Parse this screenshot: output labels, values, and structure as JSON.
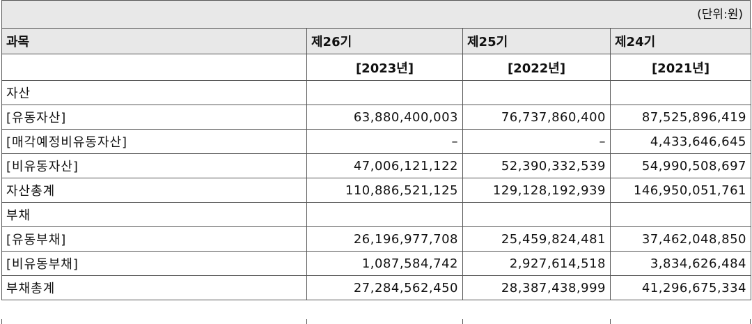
{
  "unit_note": "(단위:원)",
  "header": {
    "account": "과목",
    "periods": [
      "제26기",
      "제25기",
      "제24기"
    ],
    "years": [
      "[2023년]",
      "[2022년]",
      "[2021년]"
    ]
  },
  "rows": [
    {
      "label": "자산",
      "values": [
        "",
        "",
        ""
      ]
    },
    {
      "label": "[유동자산]",
      "values": [
        "63,880,400,003",
        "76,737,860,400",
        "87,525,896,419"
      ]
    },
    {
      "label": "[매각예정비유동자산]",
      "values": [
        "–",
        "–",
        "4,433,646,645"
      ]
    },
    {
      "label": "[비유동자산]",
      "values": [
        "47,006,121,122",
        "52,390,332,539",
        "54,990,508,697"
      ]
    },
    {
      "label": "자산총계",
      "values": [
        "110,886,521,125",
        "129,128,192,939",
        "146,950,051,761"
      ]
    },
    {
      "label": "부채",
      "values": [
        "",
        "",
        ""
      ]
    },
    {
      "label": "[유동부채]",
      "values": [
        "26,196,977,708",
        "25,459,824,481",
        "37,462,048,850"
      ]
    },
    {
      "label": "[비유동부채]",
      "values": [
        "1,087,584,742",
        "2,927,614,518",
        "3,834,626,484"
      ]
    },
    {
      "label": "부채총계",
      "values": [
        "27,284,562,450",
        "28,387,438,999",
        "41,296,675,334"
      ]
    }
  ]
}
